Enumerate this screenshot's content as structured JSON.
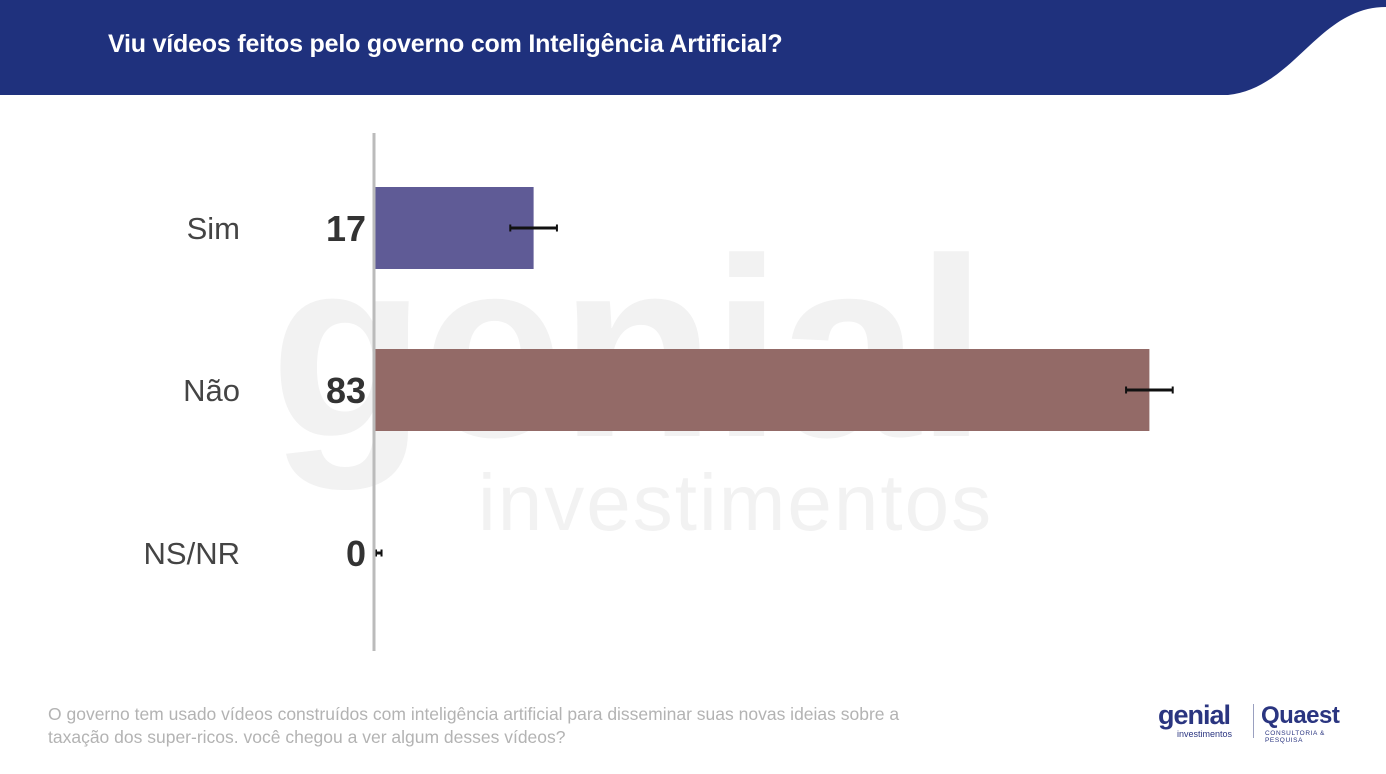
{
  "header": {
    "title": "Viu vídeos feitos pelo governo com Inteligência Artificial?",
    "bg_color": "#1f317d"
  },
  "watermark": {
    "line1": "genial",
    "line2": "investimentos"
  },
  "chart_data": {
    "type": "bar",
    "orientation": "horizontal",
    "title": "Viu vídeos feitos pelo governo com Inteligência Artificial?",
    "categories": [
      "Sim",
      "Não",
      "NS/NR"
    ],
    "values": [
      17,
      83,
      0
    ],
    "colors": [
      "#5f5b96",
      "#936a67",
      "#cccccc"
    ],
    "error_bars": [
      2.5,
      2.5,
      0.7
    ],
    "xlim": [
      0,
      100
    ],
    "grid": false,
    "legend": "none"
  },
  "footnote": "O governo tem usado vídeos construídos com inteligência artificial para disseminar suas novas ideias sobre a taxação dos super-ricos. você chegou a ver algum desses vídeos?",
  "logos": {
    "genial": "genial",
    "genial_sub": "investimentos",
    "quaest": "Quaest",
    "quaest_sub": "CONSULTORIA & PESQUISA"
  }
}
